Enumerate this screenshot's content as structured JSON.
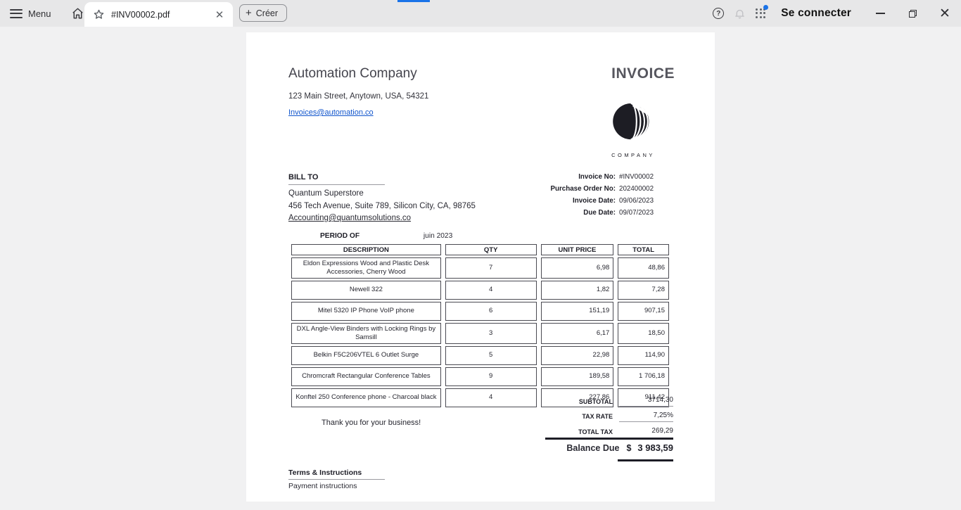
{
  "browser": {
    "menu_label": "Menu",
    "tab": {
      "title": "#INV00002.pdf"
    },
    "create_button": "Créer",
    "signin_label": "Se connecter"
  },
  "colors": {
    "accent_blue": "#1a73e8",
    "link_blue": "#1155cc",
    "toolbar_gray": "#e7e7e8",
    "canvas_gray": "#f1f1f2"
  },
  "invoice": {
    "title": "INVOICE",
    "company": {
      "name": "Automation Company",
      "address": "123 Main Street, Anytown, USA, 54321",
      "email": "Invoices@automation.co"
    },
    "logo_caption": "COMPANY",
    "bill_to": {
      "label": "BILL TO",
      "name": "Quantum Superstore",
      "address": "456 Tech Avenue, Suite 789, Silicon City, CA, 98765",
      "email": "Accounting@quantumsolutions.co"
    },
    "meta": [
      {
        "label": "Invoice No:",
        "value": "#INV00002"
      },
      {
        "label": "Purchase Order No:",
        "value": "202400002"
      },
      {
        "label": "Invoice Date:",
        "value": "09/06/2023"
      },
      {
        "label": "Due Date:",
        "value": "09/07/2023"
      }
    ],
    "period": {
      "label": "PERIOD OF",
      "value": "juin 2023"
    },
    "table": {
      "headers": [
        "DESCRIPTION",
        "QTY",
        "UNIT PRICE",
        "TOTAL"
      ],
      "rows": [
        {
          "description": "Eldon Expressions Wood and Plastic Desk Accessories, Cherry Wood",
          "qty": "7",
          "unit_price": "6,98",
          "total": "48,86"
        },
        {
          "description": "Newell 322",
          "qty": "4",
          "unit_price": "1,82",
          "total": "7,28"
        },
        {
          "description": "Mitel 5320 IP Phone VoIP phone",
          "qty": "6",
          "unit_price": "151,19",
          "total": "907,15"
        },
        {
          "description": "DXL Angle-View Binders with Locking Rings by Samsill",
          "qty": "3",
          "unit_price": "6,17",
          "total": "18,50"
        },
        {
          "description": "Belkin F5C206VTEL 6 Outlet Surge",
          "qty": "5",
          "unit_price": "22,98",
          "total": "114,90"
        },
        {
          "description": "Chromcraft Rectangular Conference Tables",
          "qty": "9",
          "unit_price": "189,58",
          "total": "1 706,18"
        },
        {
          "description": "Konftel 250 Conference phone - Charcoal black",
          "qty": "4",
          "unit_price": "227,86",
          "total": "911,42"
        }
      ]
    },
    "totals": [
      {
        "label": "SUBTOTAL",
        "value": "3714,30"
      },
      {
        "label": "TAX RATE",
        "value": "7,25%"
      },
      {
        "label": "TOTAL TAX",
        "value": "269,29"
      }
    ],
    "balance": {
      "label": "Balance Due",
      "currency": "$",
      "amount": "3 983,59"
    },
    "thank_you": "Thank you for your business!",
    "terms": {
      "label": "Terms & Instructions",
      "value": "Payment instructions"
    }
  }
}
